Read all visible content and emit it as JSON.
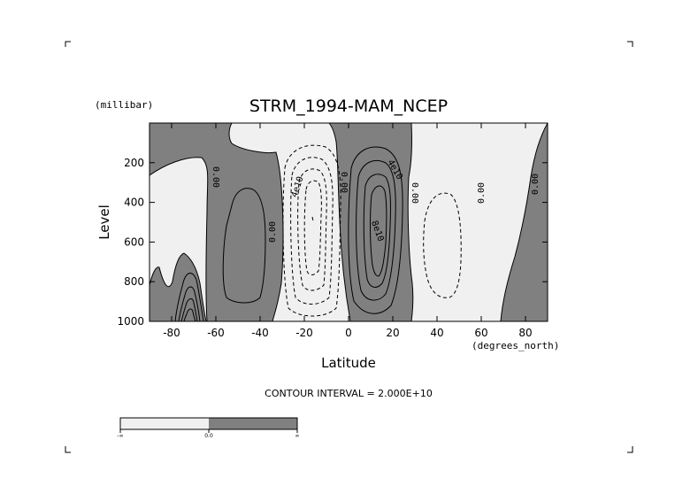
{
  "chart_data": {
    "type": "contour",
    "title": "STRM_1994-MAM_NCEP",
    "xlabel": "Latitude",
    "x_units": "(degrees_north)",
    "ylabel": "Level",
    "y_units": "(millibar)",
    "xlim": [
      -90,
      90
    ],
    "ylim": [
      1000,
      0
    ],
    "x_ticks": [
      -80,
      -60,
      -40,
      -20,
      0,
      20,
      40,
      60,
      80
    ],
    "x_tick_labels": [
      "-80",
      "-60",
      "-40",
      "-20",
      "0",
      "20",
      "40",
      "60",
      "80"
    ],
    "y_ticks": [
      200,
      400,
      600,
      800,
      1000
    ],
    "y_tick_labels": [
      "200",
      "400",
      "600",
      "800",
      "1000"
    ],
    "contour_interval_text": "CONTOUR INTERVAL = 2.000E+10",
    "contour_interval": 20000000000,
    "contour_labels": [
      "0.00",
      "0.00",
      "4e10",
      "0.00",
      "4e10",
      "8e10",
      "0.00",
      "0.00",
      "0.00"
    ],
    "colorbar": {
      "bins": [
        {
          "range": [
            "-inf",
            "0.0"
          ],
          "color": "#f0f0f0"
        },
        {
          "range": [
            "0.0",
            "inf"
          ],
          "color": "#808080"
        }
      ],
      "tick_labels": [
        "-∞",
        "0.0",
        "∞"
      ]
    },
    "fill_colors": {
      "negative": "#f0f0f0",
      "positive": "#808080"
    },
    "features": [
      {
        "sign": "positive",
        "lat_range": [
          -90,
          -66
        ],
        "level_range": [
          650,
          1000
        ],
        "peak_lat": -74,
        "peak_level": 1000
      },
      {
        "sign": "positive",
        "lat_range": [
          -68,
          -30
        ],
        "level_range": [
          150,
          1000
        ],
        "peak_lat": -45,
        "peak_level": 600
      },
      {
        "sign": "negative",
        "lat_range": [
          -35,
          0
        ],
        "level_range": [
          100,
          1000
        ],
        "peak_lat": -17,
        "peak_level": 500,
        "peak_value": -60000000000
      },
      {
        "sign": "positive",
        "lat_range": [
          0,
          28
        ],
        "level_range": [
          80,
          1000
        ],
        "peak_lat": 12,
        "peak_level": 500,
        "peak_value": 100000000000
      },
      {
        "sign": "negative",
        "lat_range": [
          28,
          58
        ],
        "level_range": [
          100,
          1000
        ],
        "peak_lat": 48,
        "peak_level": 550
      },
      {
        "sign": "positive",
        "lat_range": [
          58,
          90
        ],
        "level_range": [
          150,
          1000
        ],
        "peak_lat": 75,
        "peak_level": 1000
      }
    ]
  }
}
